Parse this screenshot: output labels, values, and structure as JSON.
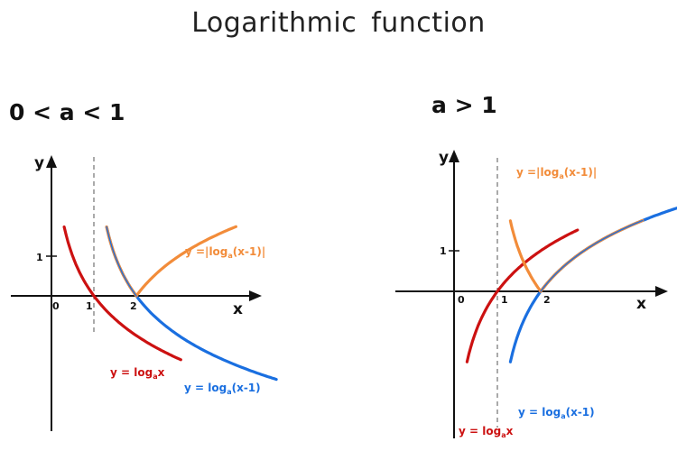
{
  "title": "Logarithmic  function",
  "cases": [
    {
      "label": "0 < a < 1",
      "axes": {
        "x_label": "x",
        "y_label": "y",
        "x_ticks": [
          "0",
          "1",
          "2"
        ],
        "y_tick": "1"
      },
      "formulas": {
        "log_x": {
          "prefix": "y = log",
          "sub": "a",
          "suffix": "x"
        },
        "log_x_minus_1": {
          "prefix": "y = log",
          "sub": "a",
          "suffix": "(x-1)"
        },
        "abs_log": {
          "prefix": "y =|log",
          "sub": "a",
          "suffix": "(x-1)|"
        }
      }
    },
    {
      "label": "a > 1",
      "axes": {
        "x_label": "x",
        "y_label": "y",
        "x_ticks": [
          "0",
          "1",
          "2"
        ],
        "y_tick": "1"
      },
      "formulas": {
        "log_x": {
          "prefix": "y = log",
          "sub": "a",
          "suffix": "x"
        },
        "log_x_minus_1": {
          "prefix": "y = log",
          "sub": "a",
          "suffix": "(x-1)"
        },
        "abs_log": {
          "prefix": "y =|log",
          "sub": "a",
          "suffix": "(x-1)|"
        }
      }
    }
  ],
  "colors": {
    "log_x": "#cc1111",
    "log_x_minus_1": "#1a6fe0",
    "abs_log": "#f28c3a"
  }
}
